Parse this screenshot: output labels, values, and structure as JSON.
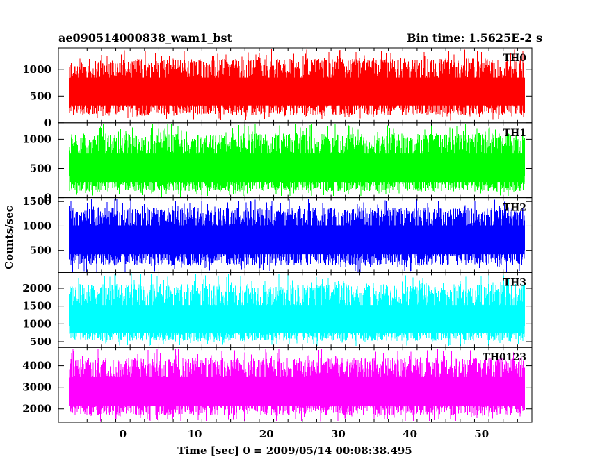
{
  "header": {
    "title": "ae090514000838_wam1_bst",
    "bin_time": "Bin time: 1.5625E-2 s"
  },
  "chart_data": {
    "type": "line",
    "title": "ae090514000838_wam1_bst",
    "subtitle": "Bin time: 1.5625E-2 s",
    "xlabel": "Time [sec] 0 = 2009/05/14 00:08:38.495",
    "ylabel": "Counts/sec",
    "xlim": [
      -9,
      57
    ],
    "data_x_range": [
      -7.5,
      56
    ],
    "xticks": [
      0,
      10,
      20,
      30,
      40,
      50
    ],
    "grid": false,
    "legend": "none",
    "panels": [
      {
        "name": "TH0",
        "color": "#ff0000",
        "ylim": [
          0,
          1400
        ],
        "yticks": [
          0,
          500,
          1000
        ],
        "mean": 560,
        "low": 40,
        "high": 1380
      },
      {
        "name": "TH1",
        "color": "#00ff00",
        "ylim": [
          0,
          1280
        ],
        "yticks": [
          0,
          500,
          1000
        ],
        "mean": 470,
        "low": 20,
        "high": 1280
      },
      {
        "name": "TH2",
        "color": "#0000ff",
        "ylim": [
          50,
          1580
        ],
        "yticks": [
          500,
          1000,
          1500
        ],
        "mean": 720,
        "low": 60,
        "high": 1560
      },
      {
        "name": "TH3",
        "color": "#00ffff",
        "ylim": [
          340,
          2440
        ],
        "yticks": [
          500,
          1000,
          1500,
          2000
        ],
        "mean": 1050,
        "low": 380,
        "high": 2420
      },
      {
        "name": "TH0123",
        "color": "#ff00ff",
        "ylim": [
          1380,
          4850
        ],
        "yticks": [
          2000,
          3000,
          4000
        ],
        "mean": 2750,
        "low": 1420,
        "high": 4820
      }
    ]
  }
}
